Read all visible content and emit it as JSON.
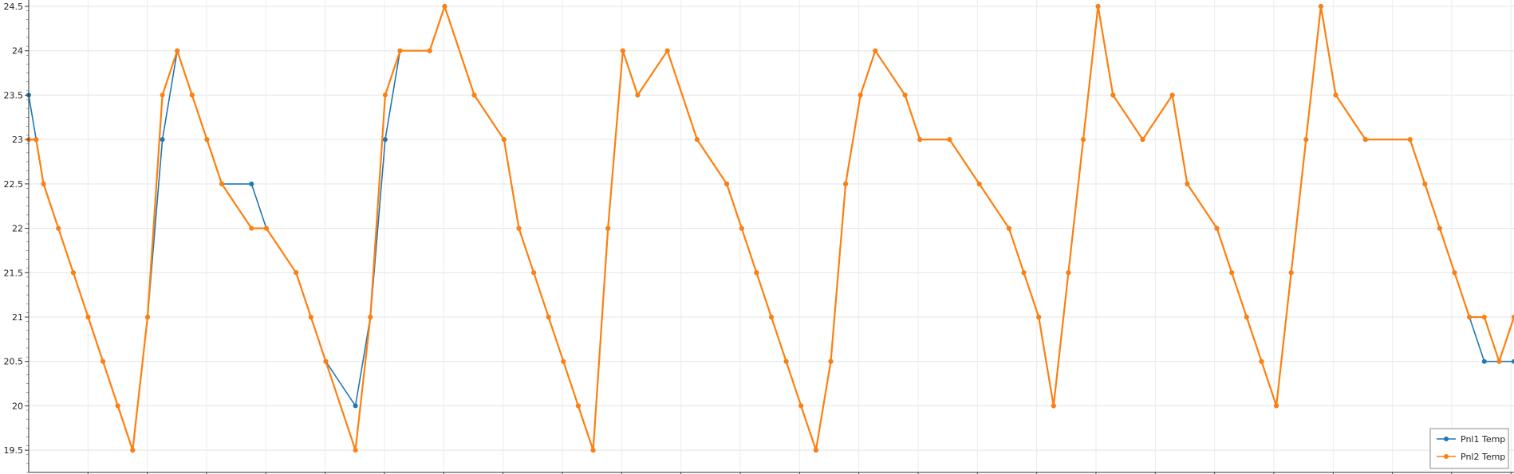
{
  "chart_data": {
    "type": "line",
    "title": "",
    "xlabel": "",
    "ylabel": "",
    "ylim": [
      19.25,
      24.5
    ],
    "yticks": [
      "19.5",
      "20",
      "20.5",
      "21",
      "21.5",
      "22",
      "22.5",
      "23",
      "23.5",
      "24",
      "24.5"
    ],
    "x_range": [
      0,
      100
    ],
    "grid": true,
    "legend_position": "bottom-right",
    "series": [
      {
        "name": "Pnl1 Temp",
        "color": "#1f77b4",
        "points": [
          [
            0,
            23.5
          ],
          [
            0.5,
            23
          ],
          [
            1,
            22.5
          ],
          [
            2,
            22
          ],
          [
            3,
            21.5
          ],
          [
            4,
            21
          ],
          [
            5,
            20.5
          ],
          [
            6,
            20
          ],
          [
            7,
            19.5
          ],
          [
            8,
            21
          ],
          [
            9,
            23
          ],
          [
            10,
            24
          ],
          [
            11,
            23.5
          ],
          [
            12,
            23
          ],
          [
            13,
            22.5
          ],
          [
            15,
            22.5
          ],
          [
            16,
            22
          ],
          [
            18,
            21.5
          ],
          [
            19,
            21
          ],
          [
            20,
            20.5
          ],
          [
            22,
            20
          ],
          [
            23,
            21
          ],
          [
            24,
            23
          ],
          [
            25,
            24
          ],
          [
            27,
            24
          ],
          [
            28,
            24.5
          ],
          [
            30,
            23.5
          ],
          [
            32,
            23
          ],
          [
            33,
            22
          ],
          [
            34,
            21.5
          ],
          [
            35,
            21
          ],
          [
            36,
            20.5
          ],
          [
            37,
            20
          ],
          [
            38,
            19.5
          ],
          [
            39,
            22
          ],
          [
            40,
            24
          ],
          [
            41,
            23.5
          ],
          [
            43,
            24
          ],
          [
            45,
            23
          ],
          [
            47,
            22.5
          ],
          [
            48,
            22
          ],
          [
            49,
            21.5
          ],
          [
            50,
            21
          ],
          [
            51,
            20.5
          ],
          [
            52,
            20
          ],
          [
            53,
            19.5
          ],
          [
            54,
            20.5
          ],
          [
            55,
            22.5
          ],
          [
            56,
            23.5
          ],
          [
            57,
            24
          ],
          [
            59,
            23.5
          ],
          [
            60,
            23
          ],
          [
            62,
            23
          ],
          [
            64,
            22.5
          ],
          [
            66,
            22
          ],
          [
            67,
            21.5
          ],
          [
            68,
            21
          ],
          [
            69,
            20
          ],
          [
            70,
            21.5
          ],
          [
            71,
            23
          ],
          [
            72,
            24.5
          ],
          [
            73,
            23.5
          ],
          [
            75,
            23
          ],
          [
            77,
            23.5
          ],
          [
            78,
            22.5
          ],
          [
            80,
            22
          ],
          [
            81,
            21.5
          ],
          [
            82,
            21
          ],
          [
            83,
            20.5
          ],
          [
            84,
            20
          ],
          [
            85,
            21.5
          ],
          [
            86,
            23
          ],
          [
            87,
            24.5
          ],
          [
            88,
            23.5
          ],
          [
            90,
            23
          ],
          [
            93,
            23
          ],
          [
            94,
            22.5
          ],
          [
            95,
            22
          ],
          [
            96,
            21.5
          ],
          [
            97,
            21
          ],
          [
            98,
            20.5
          ],
          [
            99,
            20.5
          ],
          [
            100,
            20.5
          ]
        ]
      },
      {
        "name": "Pnl2 Temp",
        "color": "#ff7f0e",
        "points": [
          [
            0,
            23
          ],
          [
            0.5,
            23
          ],
          [
            1,
            22.5
          ],
          [
            2,
            22
          ],
          [
            3,
            21.5
          ],
          [
            4,
            21
          ],
          [
            5,
            20.5
          ],
          [
            6,
            20
          ],
          [
            7,
            19.5
          ],
          [
            8,
            21
          ],
          [
            9,
            23.5
          ],
          [
            10,
            24
          ],
          [
            11,
            23.5
          ],
          [
            12,
            23
          ],
          [
            13,
            22.5
          ],
          [
            15,
            22
          ],
          [
            16,
            22
          ],
          [
            18,
            21.5
          ],
          [
            19,
            21
          ],
          [
            20,
            20.5
          ],
          [
            22,
            19.5
          ],
          [
            23,
            21
          ],
          [
            24,
            23.5
          ],
          [
            25,
            24
          ],
          [
            27,
            24
          ],
          [
            28,
            24.5
          ],
          [
            30,
            23.5
          ],
          [
            32,
            23
          ],
          [
            33,
            22
          ],
          [
            34,
            21.5
          ],
          [
            35,
            21
          ],
          [
            36,
            20.5
          ],
          [
            37,
            20
          ],
          [
            38,
            19.5
          ],
          [
            39,
            22
          ],
          [
            40,
            24
          ],
          [
            41,
            23.5
          ],
          [
            43,
            24
          ],
          [
            45,
            23
          ],
          [
            47,
            22.5
          ],
          [
            48,
            22
          ],
          [
            49,
            21.5
          ],
          [
            50,
            21
          ],
          [
            51,
            20.5
          ],
          [
            52,
            20
          ],
          [
            53,
            19.5
          ],
          [
            54,
            20.5
          ],
          [
            55,
            22.5
          ],
          [
            56,
            23.5
          ],
          [
            57,
            24
          ],
          [
            59,
            23.5
          ],
          [
            60,
            23
          ],
          [
            62,
            23
          ],
          [
            64,
            22.5
          ],
          [
            66,
            22
          ],
          [
            67,
            21.5
          ],
          [
            68,
            21
          ],
          [
            69,
            20
          ],
          [
            70,
            21.5
          ],
          [
            71,
            23
          ],
          [
            72,
            24.5
          ],
          [
            73,
            23.5
          ],
          [
            75,
            23
          ],
          [
            77,
            23.5
          ],
          [
            78,
            22.5
          ],
          [
            80,
            22
          ],
          [
            81,
            21.5
          ],
          [
            82,
            21
          ],
          [
            83,
            20.5
          ],
          [
            84,
            20
          ],
          [
            85,
            21.5
          ],
          [
            86,
            23
          ],
          [
            87,
            24.5
          ],
          [
            88,
            23.5
          ],
          [
            90,
            23
          ],
          [
            93,
            23
          ],
          [
            94,
            22.5
          ],
          [
            95,
            22
          ],
          [
            96,
            21.5
          ],
          [
            97,
            21
          ],
          [
            98,
            21
          ],
          [
            99,
            20.5
          ],
          [
            100,
            21
          ]
        ]
      }
    ]
  }
}
